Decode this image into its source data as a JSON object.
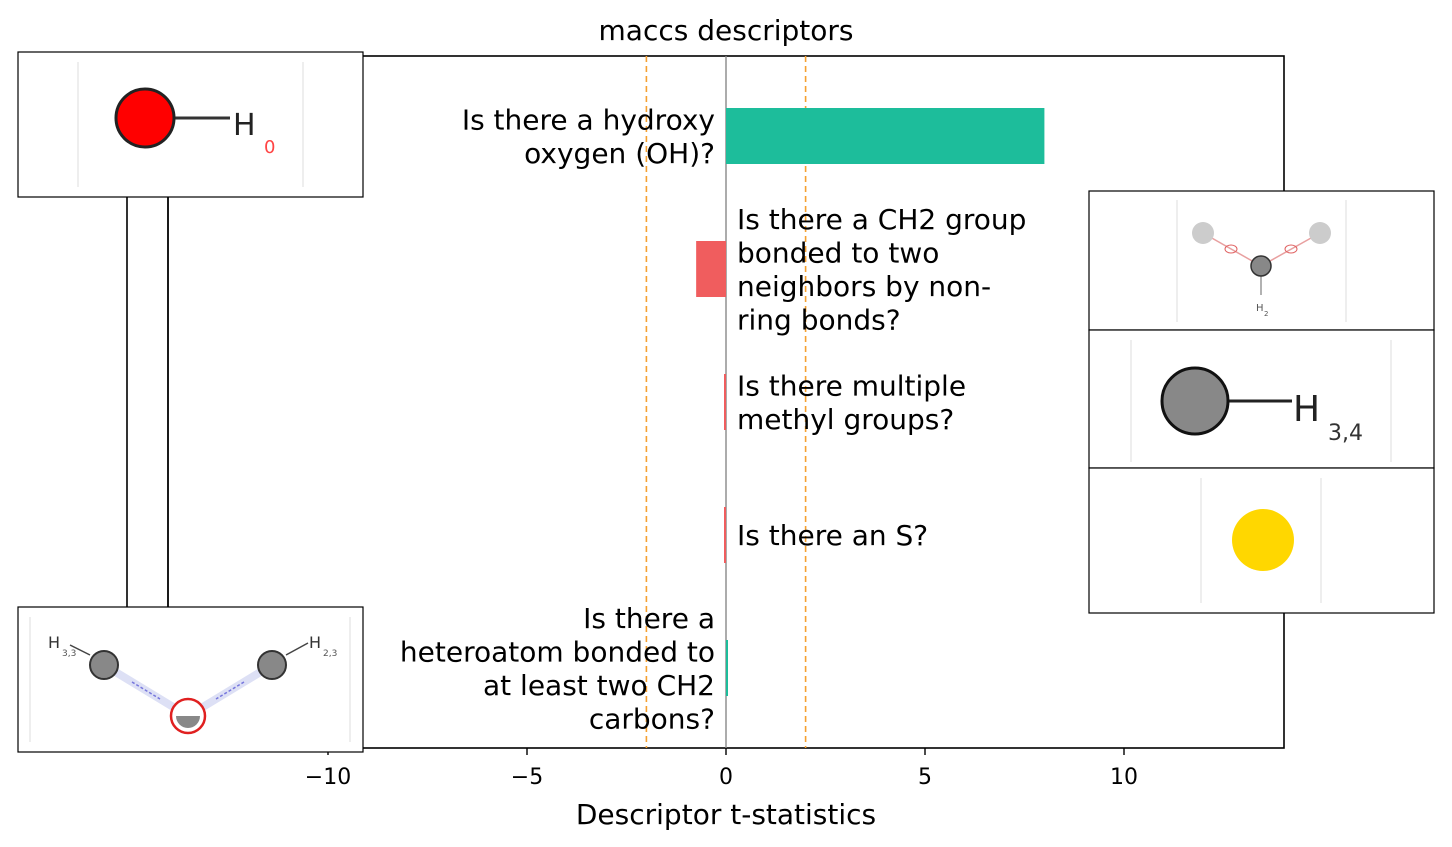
{
  "chart_data": {
    "type": "bar",
    "orientation": "horizontal",
    "title": "maccs descriptors",
    "xlabel": "Descriptor t-statistics",
    "ylabel": "",
    "xlim": [
      -10.1,
      14
    ],
    "xticks": [
      -10,
      -5,
      0,
      5,
      10
    ],
    "xtick_labels": [
      "−10",
      "−5",
      "0",
      "5",
      "10"
    ],
    "threshold_lines": [
      -2,
      2
    ],
    "categories": [
      "Is there a hydroxy oxygen (OH)?",
      "Is there a CH2 group bonded to two neighbors by non-ring bonds?",
      "Is there multiple methyl groups?",
      "Is there an S?",
      "Is there a heteroatom bonded to at least two CH2 carbons?"
    ],
    "label_lines": [
      [
        "Is there a hydroxy",
        "oxygen (OH)?"
      ],
      [
        "Is there a CH2 group",
        "bonded to two",
        "neighbors by non-",
        "ring bonds?"
      ],
      [
        "Is there multiple",
        "methyl groups?"
      ],
      [
        "Is there an S?"
      ],
      [
        "Is there a",
        "heteroatom bonded to",
        "at least two CH2",
        "carbons?"
      ]
    ],
    "values": [
      8.0,
      -0.75,
      -0.05,
      -0.05,
      0.05
    ],
    "colors": [
      "#1dbd9b",
      "#f05d5e",
      "#f05d5e",
      "#f05d5e",
      "#1dbd9b"
    ],
    "grid": false,
    "legend": "none"
  },
  "molecules": [
    {
      "name": "hydroxy-oxygen",
      "labels": [
        "H",
        "0"
      ]
    },
    {
      "name": "ch2-non-ring",
      "labels": [
        "H",
        "2"
      ]
    },
    {
      "name": "methyl",
      "labels": [
        "H",
        "3,4"
      ]
    },
    {
      "name": "sulfur",
      "labels": []
    },
    {
      "name": "heteroatom-ch2",
      "labels": [
        "H",
        "3,3",
        "H",
        "2,3"
      ]
    }
  ],
  "colors": {
    "positive_bar": "#1dbd9b",
    "negative_bar": "#f05d5e",
    "threshold": "#f5a030",
    "zero_line": "#888888"
  }
}
